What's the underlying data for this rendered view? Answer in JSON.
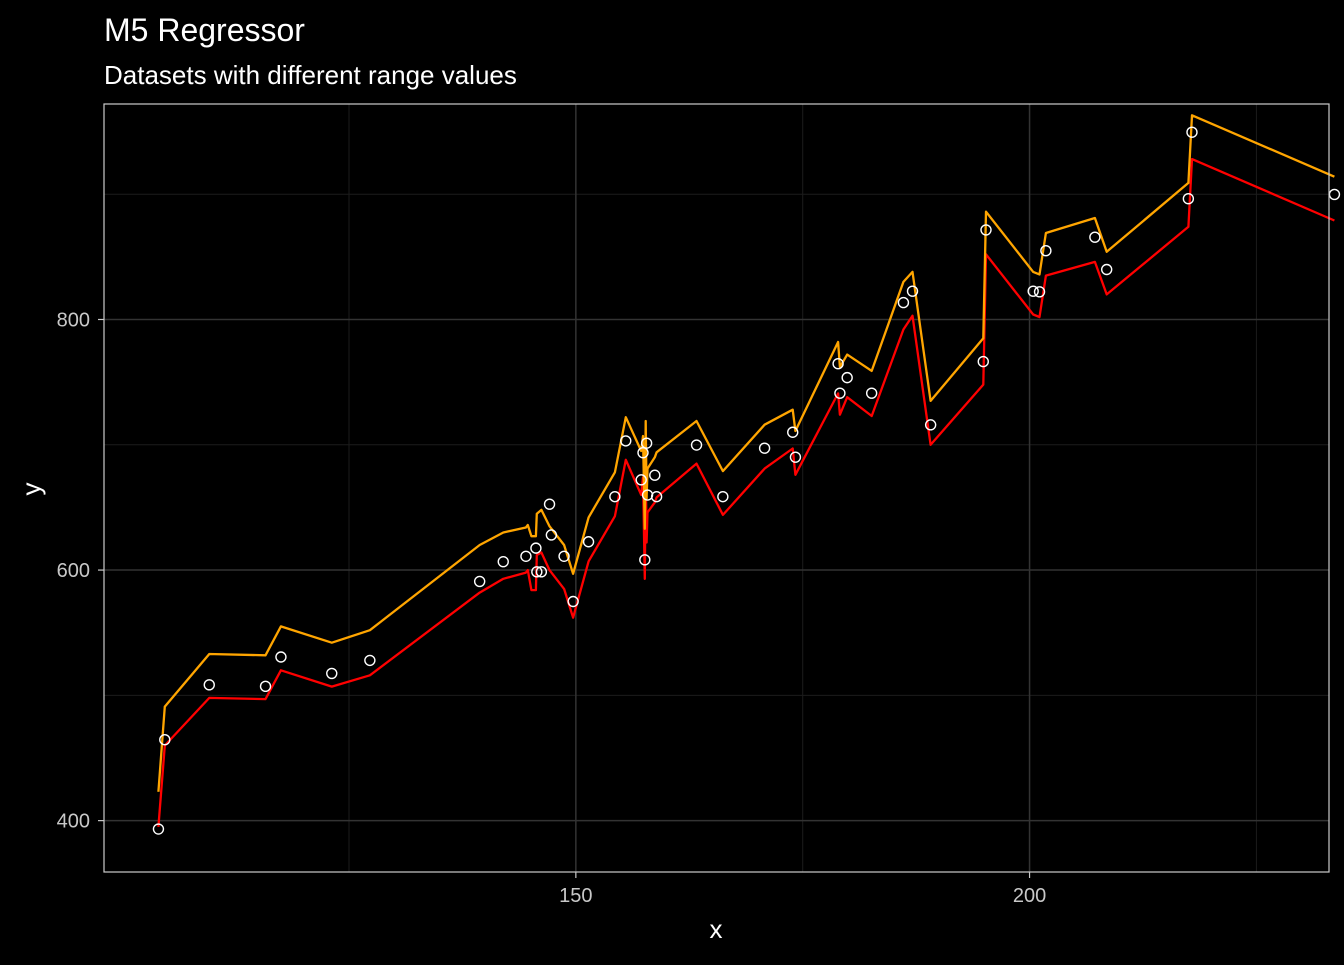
{
  "chart_data": {
    "type": "line",
    "title": "M5 Regressor",
    "subtitle": "Datasets with different range values",
    "xlabel": "x",
    "ylabel": "y",
    "xlim": [
      98,
      233
    ],
    "ylim": [
      359,
      972
    ],
    "x_ticks": [
      150,
      200
    ],
    "x_tick_labels": [
      "150",
      "200"
    ],
    "y_ticks": [
      400,
      600,
      800
    ],
    "y_tick_labels": [
      "400",
      "600",
      "800"
    ],
    "grid": true,
    "legend": "none",
    "colors": {
      "background": "#000000",
      "panel_border": "#cccccc",
      "grid_major": "#333333",
      "grid_minor": "#1c1c1c",
      "text": "#ffffff",
      "tick_text": "#c8c8c8",
      "points": "#ffffff"
    },
    "series": [
      {
        "type": "scatter",
        "color": "#ffffff",
        "x": [
          104,
          104.7,
          109.6,
          115.8,
          117.5,
          123.1,
          127.3,
          139.4,
          142,
          144.5,
          145.6,
          145.7,
          146.2,
          147.1,
          147.3,
          148.7,
          149.7,
          151.4,
          154.3,
          155.5,
          157.2,
          157.4,
          157.6,
          157.8,
          157.9,
          158.7,
          158.9,
          163.3,
          166.2,
          170.8,
          173.9,
          174.2,
          178.9,
          179.1,
          179.9,
          182.6,
          186.1,
          187.1,
          189.1,
          194.9,
          195.2,
          200.4,
          201.1,
          201.8,
          207.2,
          208.5,
          217.5,
          217.9,
          233.6
        ],
        "y": [
          393.3,
          464.6,
          508.4,
          507.2,
          530.6,
          517.5,
          527.9,
          590.9,
          606.7,
          611,
          617.5,
          598.6,
          598.6,
          652.6,
          628,
          611,
          574.9,
          622.6,
          658.6,
          703.1,
          672,
          693.7,
          608.2,
          701.3,
          659.9,
          675.7,
          658.6,
          699.8,
          658.6,
          697.3,
          710,
          690.1,
          764.7,
          741.2,
          753.6,
          741.2,
          813.5,
          822.6,
          715.9,
          766.4,
          871.5,
          822.6,
          822.1,
          854.9,
          865.7,
          839.9,
          896.4,
          949.5,
          899.8
        ]
      },
      {
        "type": "line",
        "color": "#ff0000",
        "x": [
          104,
          104.7,
          109.6,
          115.8,
          117.5,
          123.1,
          127.3,
          139.4,
          142,
          144.5,
          144.7,
          145.1,
          145.6,
          145.7,
          146.2,
          147.1,
          147.3,
          148.7,
          149.7,
          151.4,
          154.3,
          155.5,
          157.2,
          157.4,
          157.6,
          157.7,
          157.8,
          157.9,
          158.7,
          158.9,
          163.3,
          166.2,
          170.8,
          173.9,
          174.2,
          178.9,
          179.1,
          179.9,
          182.6,
          186.1,
          187.1,
          189.1,
          194.9,
          195.2,
          200.4,
          201.1,
          201.8,
          207.2,
          208.5,
          217.5,
          217.9,
          233.6
        ],
        "y": [
          395,
          460,
          498,
          497,
          520,
          507,
          516,
          582,
          593,
          598,
          600,
          584,
          584,
          612,
          614,
          600,
          598,
          585,
          562,
          607,
          643,
          688,
          660,
          674,
          593,
          683,
          622,
          646,
          654,
          658,
          685,
          644,
          681,
          697,
          676,
          741,
          724,
          738,
          723,
          792,
          803,
          700,
          748,
          852,
          804,
          802,
          835,
          846,
          820,
          874,
          928,
          879
        ]
      },
      {
        "type": "line",
        "color": "#ffa500",
        "x": [
          104,
          104.7,
          109.6,
          115.8,
          117.5,
          123.1,
          127.3,
          139.4,
          142,
          144.5,
          144.7,
          145.1,
          145.6,
          145.7,
          146.2,
          147.1,
          147.3,
          148.7,
          149.7,
          151.4,
          154.3,
          155.5,
          157.2,
          157.4,
          157.6,
          157.7,
          157.8,
          157.9,
          158.7,
          158.9,
          163.3,
          166.2,
          170.8,
          173.9,
          174.2,
          178.9,
          179.1,
          179.9,
          182.6,
          186.1,
          187.1,
          189.1,
          194.9,
          195.2,
          200.4,
          201.1,
          201.8,
          207.2,
          208.5,
          217.5,
          217.9,
          233.6
        ],
        "y": [
          423,
          491,
          533,
          532,
          555,
          542,
          552,
          620,
          630,
          634,
          636,
          627,
          627,
          645,
          648,
          635,
          633,
          620,
          597,
          642,
          678,
          722,
          695,
          707,
          633,
          719,
          657,
          681,
          690,
          694,
          719,
          679,
          716,
          728,
          711,
          782,
          762,
          772,
          759,
          830,
          838,
          735,
          785,
          886,
          838,
          836,
          869,
          881,
          854,
          909,
          963,
          914
        ]
      }
    ]
  }
}
